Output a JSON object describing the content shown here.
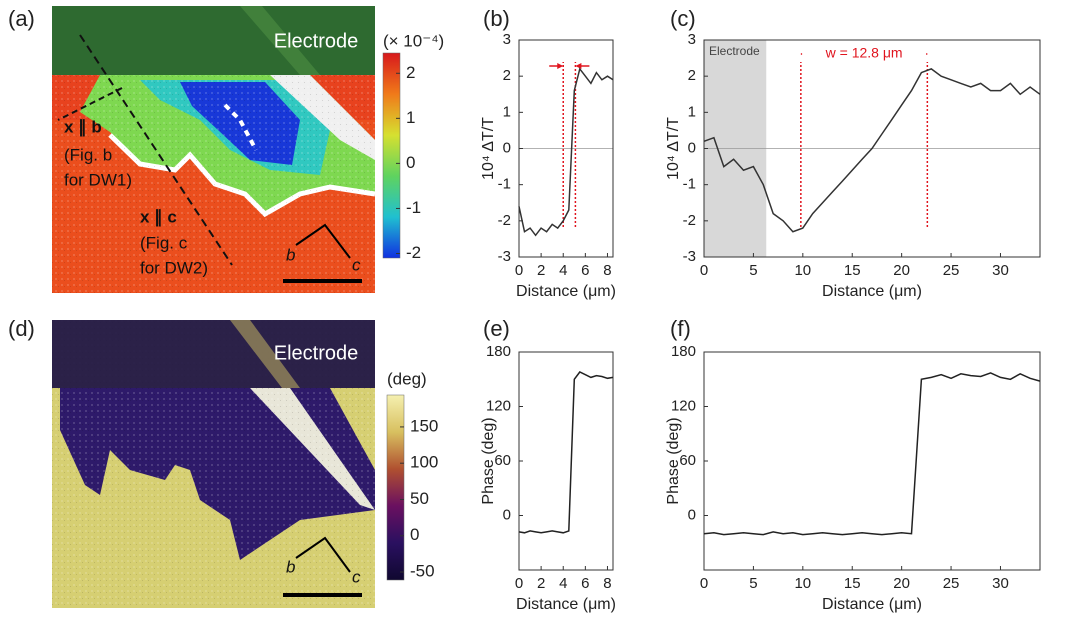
{
  "panel_labels": [
    "(a)",
    "(b)",
    "(c)",
    "(d)",
    "(e)",
    "(f)"
  ],
  "image_a": {
    "electrode": "Electrode",
    "annotations": [
      "x ∥ b",
      "(Fig. b",
      "for DW1)",
      "x ∥ c",
      "(Fig. c",
      "for DW2)"
    ],
    "axes": [
      "b",
      "c"
    ],
    "colorbar": {
      "title": "(× 10⁻⁴)",
      "lim": [
        -2.1,
        2.45
      ],
      "ticks": [
        2,
        1,
        0,
        -1,
        -2
      ],
      "colors": [
        "#d7191c",
        "#f07a1a",
        "#d6e030",
        "#5fd35f",
        "#20c0d0",
        "#1030e0"
      ]
    }
  },
  "image_d": {
    "electrode": "Electrode",
    "axes": [
      "b",
      "c"
    ],
    "colorbar": {
      "title": "(deg)",
      "lim": [
        -61,
        194
      ],
      "ticks": [
        150,
        100,
        50,
        0,
        -50
      ],
      "colors": [
        "#f5f0b0",
        "#d8c060",
        "#b05030",
        "#6a1060",
        "#2a1060",
        "#100830"
      ]
    }
  },
  "chart_data": [
    {
      "type": "line",
      "color": "#333333",
      "xlabel": "Distance (μm)",
      "ylabel": "10⁴ ΔT/T",
      "x": [
        0,
        0.5,
        1,
        1.5,
        2,
        2.5,
        3,
        3.5,
        4,
        4.5,
        5,
        5.5,
        6,
        6.5,
        7,
        7.5,
        8,
        8.5
      ],
      "values": [
        -1.6,
        -2.3,
        -2.2,
        -2.4,
        -2.2,
        -2.3,
        -2.1,
        -2.2,
        -2.0,
        -1.7,
        1.6,
        2.2,
        2.0,
        1.8,
        2.1,
        1.9,
        2.0,
        1.9
      ],
      "xlim": [
        0,
        8.5
      ],
      "ylim": [
        -3,
        3
      ],
      "xticks": [
        0,
        2,
        4,
        6,
        8
      ],
      "yticks": [
        -3,
        -2,
        -1,
        0,
        1,
        2,
        3
      ],
      "zero_line": true,
      "markers": [
        4,
        5.1
      ],
      "marker_color": "#e0141e"
    },
    {
      "type": "line",
      "color": "#333333",
      "xlabel": "Distance (μm)",
      "ylabel": "10⁴ ΔT/T",
      "x": [
        0,
        1,
        2,
        3,
        4,
        5,
        6,
        7,
        8,
        9,
        10,
        11,
        12,
        13,
        14,
        15,
        16,
        17,
        18,
        19,
        20,
        21,
        22,
        23,
        24,
        25,
        26,
        27,
        28,
        29,
        30,
        31,
        32,
        33,
        34
      ],
      "values": [
        0.2,
        0.3,
        -0.5,
        -0.3,
        -0.6,
        -0.5,
        -1.0,
        -1.8,
        -2.0,
        -2.3,
        -2.2,
        -1.8,
        -1.5,
        -1.2,
        -0.9,
        -0.6,
        -0.3,
        0.0,
        0.4,
        0.8,
        1.2,
        1.6,
        2.1,
        2.2,
        2.0,
        1.9,
        1.8,
        1.7,
        1.8,
        1.6,
        1.6,
        1.8,
        1.5,
        1.7,
        1.5
      ],
      "xlim": [
        0,
        34
      ],
      "ylim": [
        -3,
        3
      ],
      "xticks": [
        0,
        5,
        10,
        15,
        20,
        25,
        30
      ],
      "yticks": [
        -3,
        -2,
        -1,
        0,
        1,
        2,
        3
      ],
      "zero_line": true,
      "shade": [
        0,
        6.3
      ],
      "shade_label": "Electrode",
      "markers": [
        9.8,
        22.6
      ],
      "marker_color": "#e0141e",
      "annotation": "w = 12.8 μm"
    },
    {
      "type": "line",
      "color": "#222222",
      "xlabel": "Distance (μm)",
      "ylabel": "Phase (deg)",
      "x": [
        0,
        0.5,
        1,
        1.5,
        2,
        2.5,
        3,
        3.5,
        4,
        4.5,
        5,
        5.5,
        6,
        6.5,
        7,
        7.5,
        8,
        8.5
      ],
      "values": [
        -18,
        -19,
        -17,
        -18,
        -19,
        -18,
        -17,
        -18,
        -19,
        -17,
        150,
        158,
        155,
        152,
        154,
        153,
        151,
        152
      ],
      "xlim": [
        0,
        8.5
      ],
      "ylim": [
        -60,
        180
      ],
      "xticks": [
        0,
        2,
        4,
        6,
        8
      ],
      "yticks": [
        0,
        60,
        120,
        180
      ]
    },
    {
      "type": "line",
      "color": "#222222",
      "xlabel": "Distance (μm)",
      "ylabel": "Phase (deg)",
      "x": [
        0,
        1,
        2,
        3,
        4,
        5,
        6,
        7,
        8,
        9,
        10,
        11,
        12,
        13,
        14,
        15,
        16,
        17,
        18,
        19,
        20,
        21,
        22,
        23,
        24,
        25,
        26,
        27,
        28,
        29,
        30,
        31,
        32,
        33,
        34
      ],
      "values": [
        -20,
        -19,
        -21,
        -20,
        -19,
        -20,
        -21,
        -18,
        -20,
        -19,
        -21,
        -20,
        -19,
        -20,
        -21,
        -20,
        -19,
        -20,
        -21,
        -20,
        -19,
        -20,
        150,
        152,
        155,
        151,
        156,
        154,
        153,
        157,
        152,
        150,
        156,
        151,
        148
      ],
      "xlim": [
        0,
        34
      ],
      "ylim": [
        -60,
        180
      ],
      "xticks": [
        0,
        5,
        10,
        15,
        20,
        25,
        30
      ],
      "yticks": [
        0,
        60,
        120,
        180
      ]
    }
  ]
}
